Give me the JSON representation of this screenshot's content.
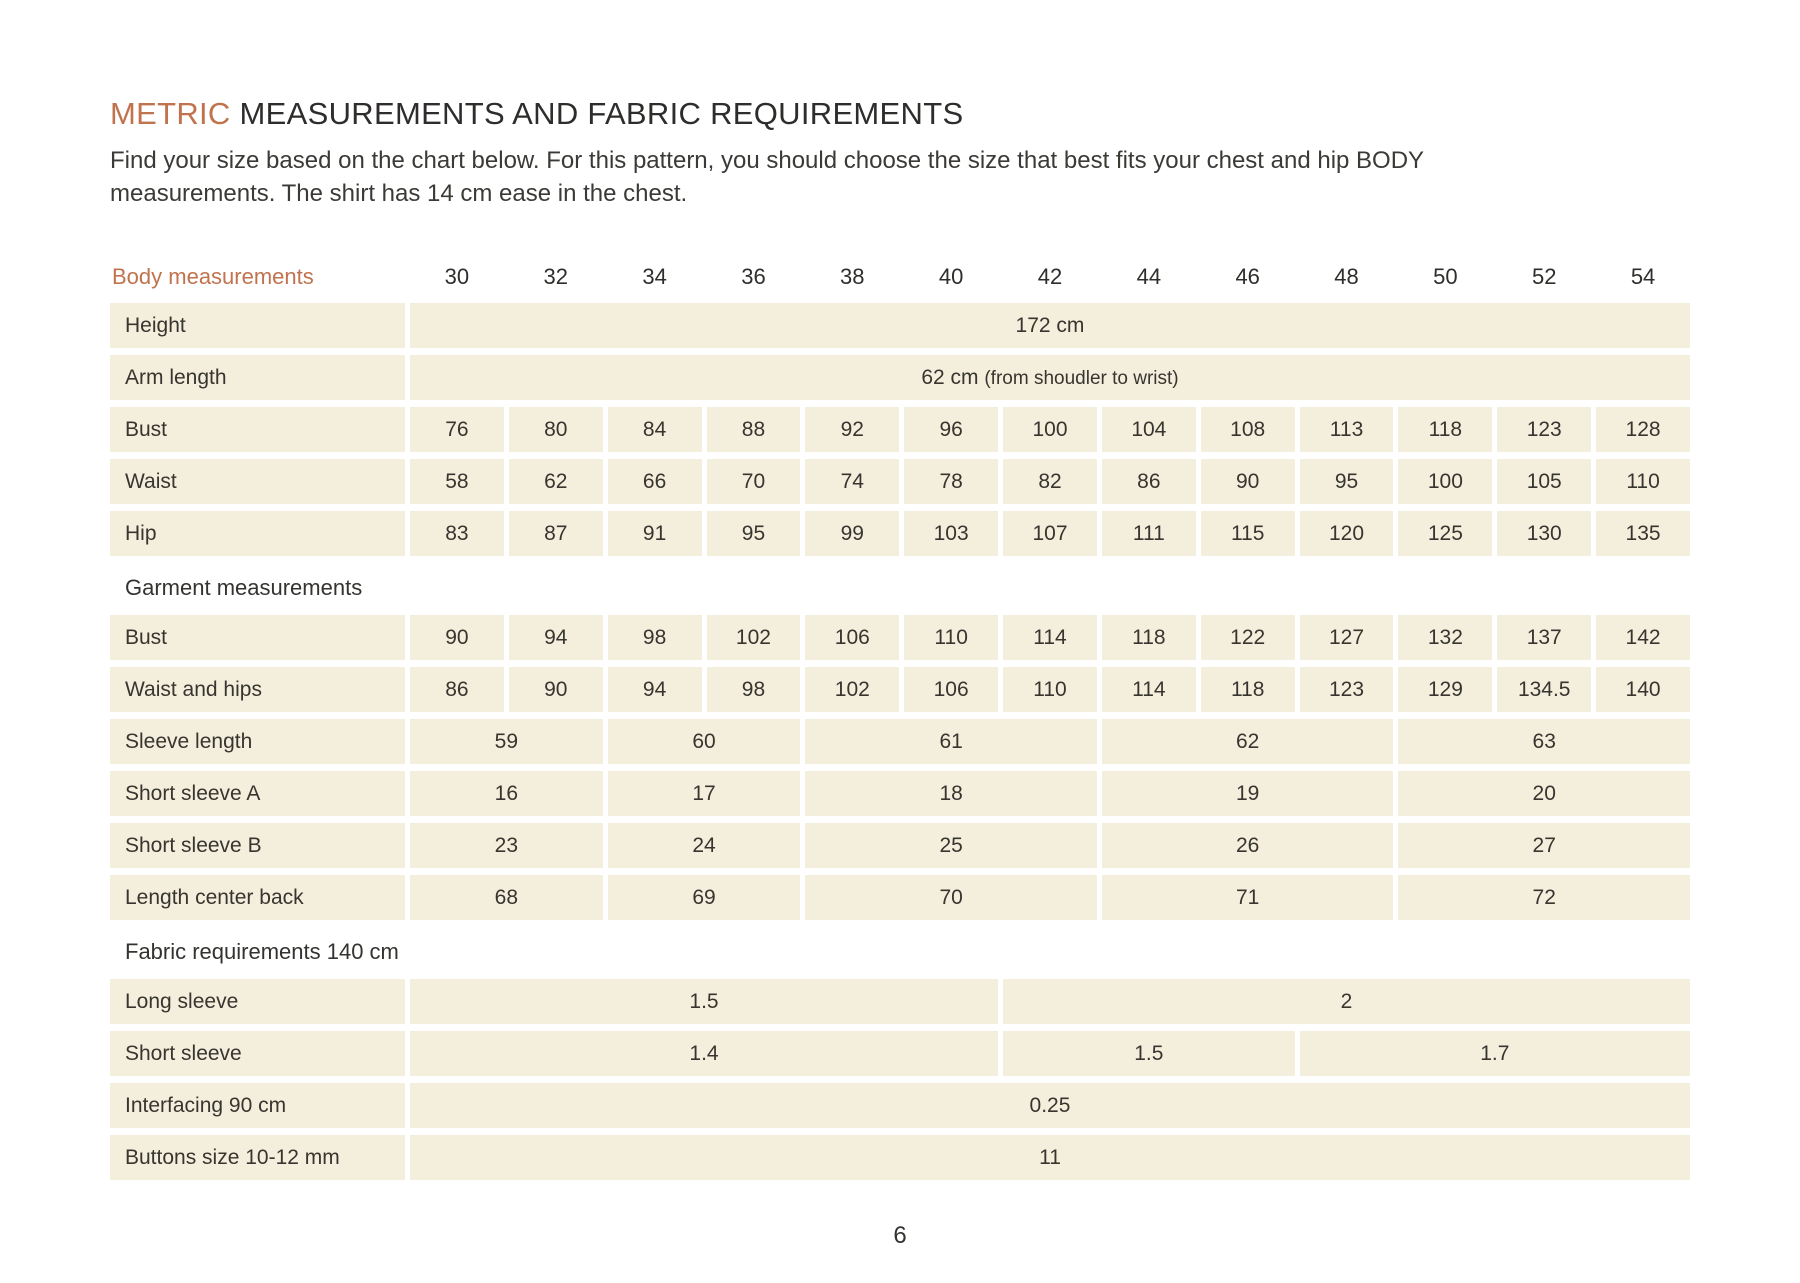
{
  "colors": {
    "accent": "#c1734e",
    "cell_bg": "#f4eedc",
    "text": "#37352f"
  },
  "page": {
    "title_accent": "METRIC",
    "title_rest": "MEASUREMENTS AND FABRIC REQUIREMENTS",
    "intro_line1": "Find your size based on the chart below. For this pattern, you should choose the size that best fits your chest and hip BODY",
    "intro_line2": "measurements. The shirt has 14 cm ease in the chest.",
    "page_number": "6"
  },
  "table": {
    "header": {
      "label": "Body measurements",
      "sizes": [
        "30",
        "32",
        "34",
        "36",
        "38",
        "40",
        "42",
        "44",
        "46",
        "48",
        "50",
        "52",
        "54"
      ]
    },
    "rows": {
      "height": {
        "label": "Height",
        "value": "172 cm"
      },
      "arm_length": {
        "label": "Arm length",
        "value_main": "62 cm",
        "value_note": "(from shoudler to wrist)"
      },
      "bust_body": {
        "label": "Bust",
        "values": [
          "76",
          "80",
          "84",
          "88",
          "92",
          "96",
          "100",
          "104",
          "108",
          "113",
          "118",
          "123",
          "128"
        ]
      },
      "waist_body": {
        "label": "Waist",
        "values": [
          "58",
          "62",
          "66",
          "70",
          "74",
          "78",
          "82",
          "86",
          "90",
          "95",
          "100",
          "105",
          "110"
        ]
      },
      "hip_body": {
        "label": "Hip",
        "values": [
          "83",
          "87",
          "91",
          "95",
          "99",
          "103",
          "107",
          "111",
          "115",
          "120",
          "125",
          "130",
          "135"
        ]
      },
      "garment_section": "Garment measurements",
      "bust_garment": {
        "label": "Bust",
        "values": [
          "90",
          "94",
          "98",
          "102",
          "106",
          "110",
          "114",
          "118",
          "122",
          "127",
          "132",
          "137",
          "142"
        ]
      },
      "waist_hips_garment": {
        "label": "Waist and hips",
        "values": [
          "86",
          "90",
          "94",
          "98",
          "102",
          "106",
          "110",
          "114",
          "118",
          "123",
          "129",
          "134.5",
          "140"
        ]
      },
      "sleeve_length": {
        "label": "Sleeve length",
        "groups": [
          "59",
          "60",
          "61",
          "62",
          "63"
        ]
      },
      "short_sleeve_a": {
        "label": "Short sleeve A",
        "groups": [
          "16",
          "17",
          "18",
          "19",
          "20"
        ]
      },
      "short_sleeve_b": {
        "label": "Short sleeve B",
        "groups": [
          "23",
          "24",
          "25",
          "26",
          "27"
        ]
      },
      "length_center_back": {
        "label": "Length center back",
        "groups": [
          "68",
          "69",
          "70",
          "71",
          "72"
        ]
      },
      "fabric_section": "Fabric requirements 140 cm",
      "long_sleeve": {
        "label": "Long sleeve",
        "groups": [
          "1.5",
          "2"
        ]
      },
      "short_sleeve": {
        "label": "Short sleeve",
        "groups": [
          "1.4",
          "1.5",
          "1.7"
        ]
      },
      "interfacing": {
        "label": "Interfacing 90 cm",
        "value": "0.25"
      },
      "buttons": {
        "label": "Buttons size 10-12 mm",
        "value": "11"
      }
    }
  }
}
